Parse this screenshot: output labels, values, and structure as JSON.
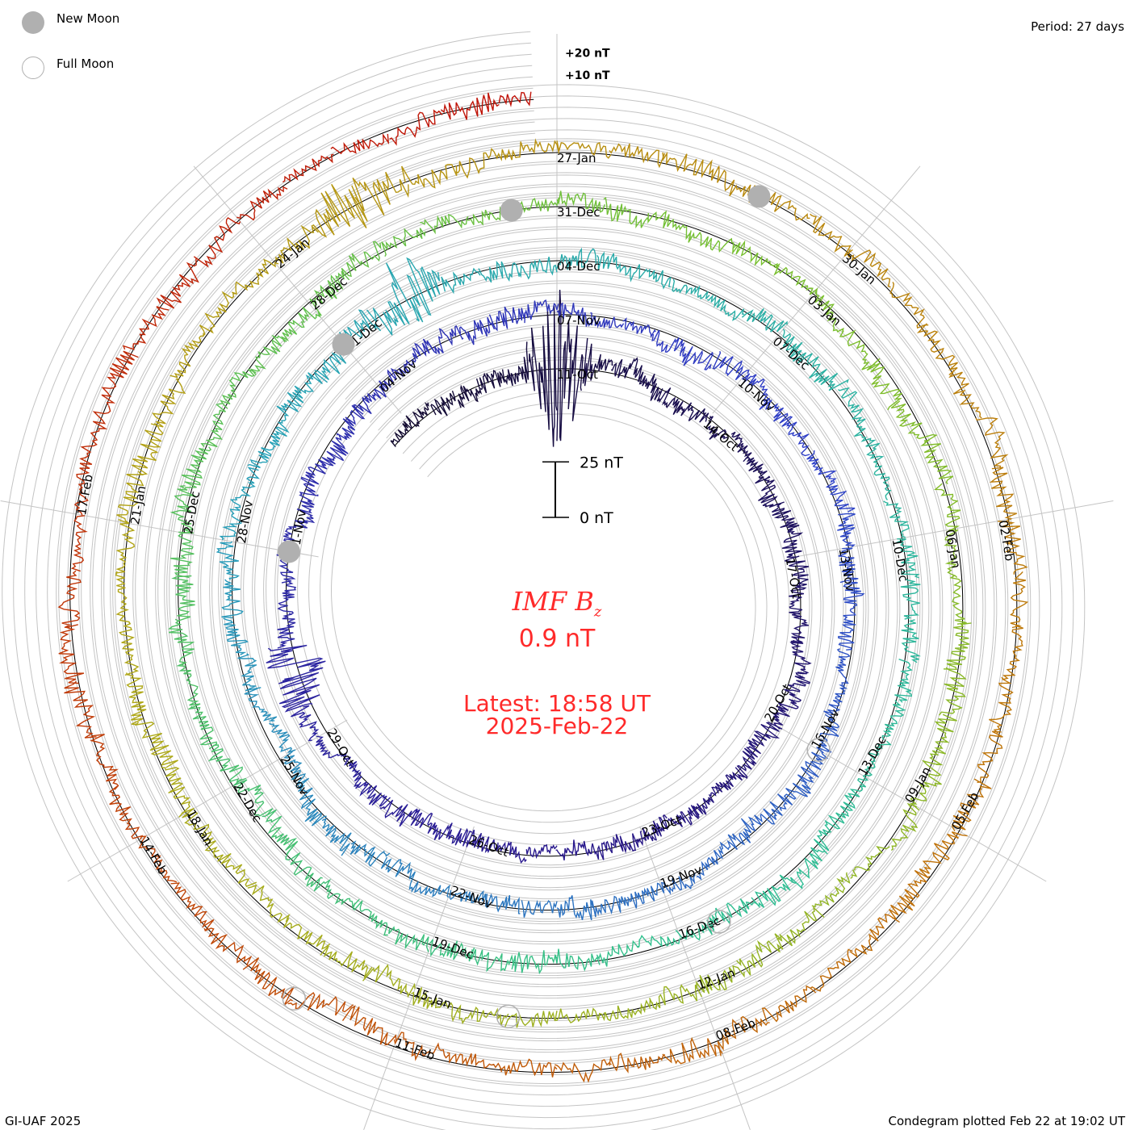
{
  "legend": {
    "new_moon": "New Moon",
    "full_moon": "Full Moon"
  },
  "period_label": "Period: 27 days",
  "footer": {
    "left": "GI-UAF 2025",
    "right": "Condegram plotted Feb 22 at 19:02 UT"
  },
  "center": {
    "title_main": "IMF B",
    "title_sub": "z",
    "value": "0.9 nT",
    "latest": "Latest: 18:58 UT",
    "date": "2025-Feb-22"
  },
  "chart_data": {
    "type": "line",
    "subtype": "condegram-spiral",
    "title": "IMF Bz",
    "units": "nT",
    "period_days": 27,
    "latest_value": 0.9,
    "scale_bar": {
      "labels": [
        "25 nT",
        "0 nT"
      ],
      "values": [
        25,
        0
      ]
    },
    "ring_labels": {
      "labels": [
        "+20 nT",
        "+10 nT"
      ],
      "values": [
        20,
        10
      ]
    },
    "start_day_offset": -3.5,
    "end_day_offset": 134.8,
    "date_labels": [
      "11-Oct",
      "14-Oct",
      "17-Oct",
      "20-Oct",
      "23-Oct",
      "26-Oct",
      "29-Oct",
      "01-Nov",
      "04-Nov",
      "07-Nov",
      "10-Nov",
      "13-Nov",
      "16-Nov",
      "19-Nov",
      "22-Nov",
      "25-Nov",
      "28-Nov",
      "01-Dec",
      "04-Dec",
      "07-Dec",
      "10-Dec",
      "13-Dec",
      "16-Dec",
      "19-Dec",
      "22-Dec",
      "25-Dec",
      "28-Dec",
      "31-Dec",
      "03-Jan",
      "06-Jan",
      "09-Jan",
      "12-Jan",
      "15-Jan",
      "18-Jan",
      "21-Jan",
      "24-Jan",
      "27-Jan",
      "30-Jan",
      "02-Feb",
      "05-Feb",
      "08-Feb",
      "11-Feb",
      "14-Feb",
      "17-Feb"
    ],
    "date_label_step_days": 3,
    "new_moon_days": [
      21,
      51,
      80.5,
      110
    ],
    "full_moon_days": [
      36,
      65.5,
      95,
      124
    ],
    "events": [
      {
        "day": 0,
        "min_bz": -40,
        "max_bz": 35
      },
      {
        "day": 19,
        "min_bz": -15,
        "max_bz": 12
      },
      {
        "day": 52,
        "min_bz": -12,
        "max_bz": 20
      },
      {
        "day": 106,
        "min_bz": -8,
        "max_bz": 14
      }
    ],
    "noise_amplitude_nT": 5,
    "colors": [
      "#120a30",
      "#2a1a90",
      "#3040c8",
      "#28a0b8",
      "#30c090",
      "#78c030",
      "#b0a818",
      "#c07008",
      "#c01008"
    ]
  }
}
